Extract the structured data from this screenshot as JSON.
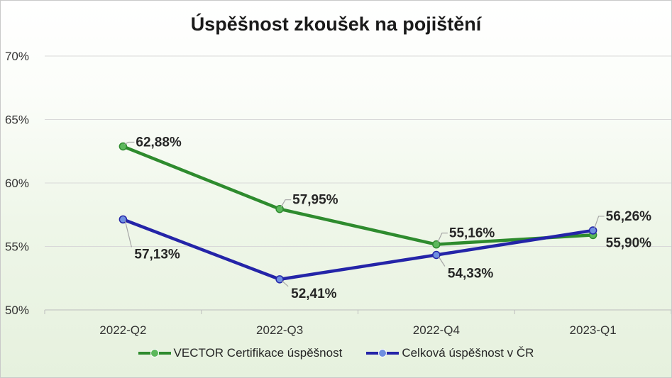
{
  "chart_data": {
    "type": "line",
    "title": "Úspěšnost zkoušek na pojištění",
    "categories": [
      "2022-Q2",
      "2022-Q3",
      "2022-Q4",
      "2023-Q1"
    ],
    "yticks": [
      "50%",
      "55%",
      "60%",
      "65%",
      "70%"
    ],
    "ylim": [
      50,
      70
    ],
    "grid": true,
    "legend_position": "bottom",
    "series": [
      {
        "name": "VECTOR Certifikace úspěšnost",
        "color": "#2e8b2e",
        "marker_color": "#5cb85c",
        "values": [
          62.88,
          57.95,
          55.16,
          55.9
        ],
        "labels": [
          "62,88%",
          "57,95%",
          "55,16%",
          "55,90%"
        ]
      },
      {
        "name": "Celková úspěšnost v ČR",
        "color": "#2424a8",
        "marker_color": "#6f8fe0",
        "values": [
          57.13,
          52.41,
          54.33,
          56.26
        ],
        "labels": [
          "57,13%",
          "52,41%",
          "54,33%",
          "56,26%"
        ]
      }
    ]
  }
}
